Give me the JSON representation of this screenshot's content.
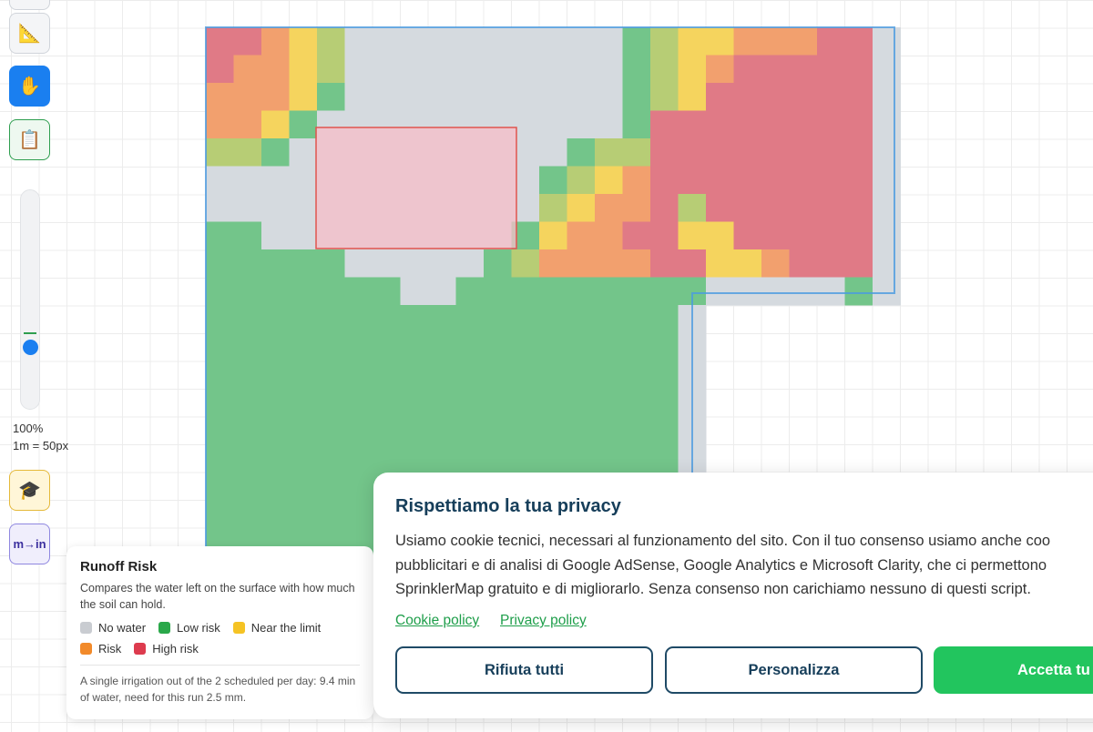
{
  "toolbar": {
    "buttons": [
      "📐",
      "✋",
      "📋"
    ],
    "zoom": "100%",
    "scale": "1m = 50px",
    "tutorial": "🎓",
    "units": "m→in"
  },
  "legend": {
    "title": "Runoff Risk",
    "description": "Compares the water left on the surface with how much the soil can hold.",
    "items": [
      "No water",
      "Low risk",
      "Near the limit",
      "Risk",
      "High risk"
    ],
    "note": "A single irrigation out of the 2 scheduled per day: 9.4 min of water, need for this run 2.5 mm."
  },
  "cookie_banner": {
    "title": "Rispettiamo la tua privacy",
    "lines": [
      "Usiamo cookie tecnici, necessari al funzionamento del sito. Con il tuo consenso usiamo anche coo",
      "pubblicitari e di analisi di Google AdSense, Google Analytics e Microsoft Clarity, che ci permettono",
      "SprinklerMap gratuito e di migliorarlo. Senza consenso non carichiamo nessuno di questi script."
    ],
    "links": [
      "Cookie policy",
      "Privacy policy"
    ],
    "buttons": [
      "Rifiuta tutti",
      "Personalizza",
      "Accetta tu"
    ]
  }
}
